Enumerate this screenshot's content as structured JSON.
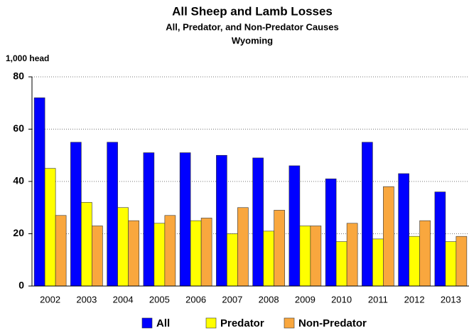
{
  "chart_data": {
    "type": "bar",
    "title": "All Sheep and Lamb Losses",
    "subtitle": "All, Predator, and Non-Predator Causes",
    "subtitle2": "Wyoming",
    "y_label": "1,000 head",
    "categories": [
      "2002",
      "2003",
      "2004",
      "2005",
      "2006",
      "2007",
      "2008",
      "2009",
      "2010",
      "2011",
      "2012",
      "2013"
    ],
    "series": [
      {
        "name": "All",
        "color": "#0000ff",
        "values": [
          72,
          55,
          55,
          51,
          51,
          50,
          49,
          46,
          41,
          55,
          43,
          36
        ]
      },
      {
        "name": "Predator",
        "color": "#ffff00",
        "values": [
          45,
          32,
          30,
          24,
          25,
          20,
          21,
          23,
          17,
          18,
          19,
          17
        ]
      },
      {
        "name": "Non-Predator",
        "color": "#f9a73e",
        "values": [
          27,
          23,
          25,
          27,
          26,
          30,
          29,
          23,
          24,
          38,
          25,
          19
        ]
      }
    ],
    "ylim": [
      0,
      80
    ],
    "yticks": [
      0,
      20,
      40,
      60,
      80
    ],
    "grid": true,
    "legend": "bottom"
  }
}
